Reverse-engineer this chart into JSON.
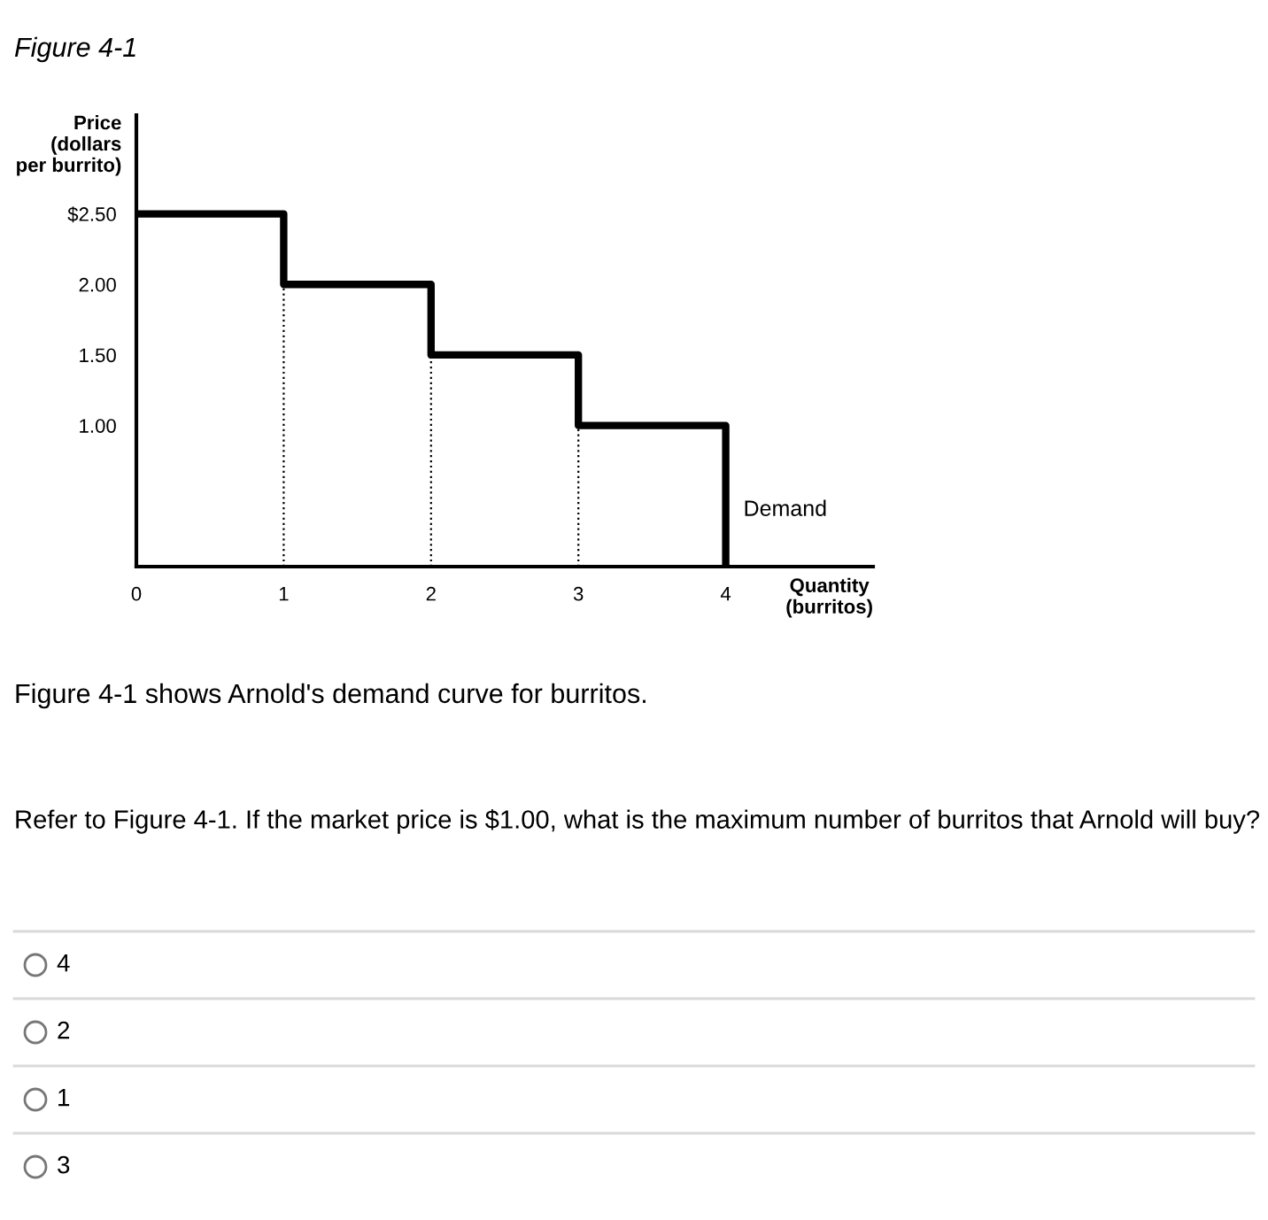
{
  "chart_data": {
    "type": "step",
    "title": "Figure 4-1",
    "xlabel": "Quantity\n(burritos)",
    "ylabel": "Price\n(dollars\nper burrito)",
    "x": [
      0,
      1,
      2,
      3,
      4
    ],
    "series": [
      {
        "name": "Demand",
        "color": "#000000",
        "values": [
          2.5,
          2.0,
          1.5,
          1.0,
          0
        ]
      }
    ],
    "xlim": [
      0,
      5
    ],
    "ylim": [
      0,
      3.2
    ],
    "xticks": [
      0,
      1,
      2,
      3,
      4
    ],
    "yticks": [
      {
        "value": 1.0,
        "label": "1.00"
      },
      {
        "value": 1.5,
        "label": "1.50"
      },
      {
        "value": 2.0,
        "label": "2.00"
      },
      {
        "value": 2.5,
        "label": "$2.50"
      }
    ],
    "ref_lines": [
      {
        "axis": "x",
        "value": 1,
        "label": null,
        "line_style": "dotted",
        "color": "#000000"
      },
      {
        "axis": "x",
        "value": 2,
        "label": null,
        "line_style": "dotted",
        "color": "#000000"
      },
      {
        "axis": "x",
        "value": 3,
        "label": null,
        "line_style": "dotted",
        "color": "#000000"
      }
    ],
    "annotations": [
      "Figure 4-1 shows Arnold's demand curve for burritos.",
      "Refer to Figure 4-1. If the market price is $1.00, what is the maximum number of burritos that Arnold will buy?",
      "4",
      "2",
      "1",
      "3"
    ],
    "grid": false,
    "legend": false
  }
}
